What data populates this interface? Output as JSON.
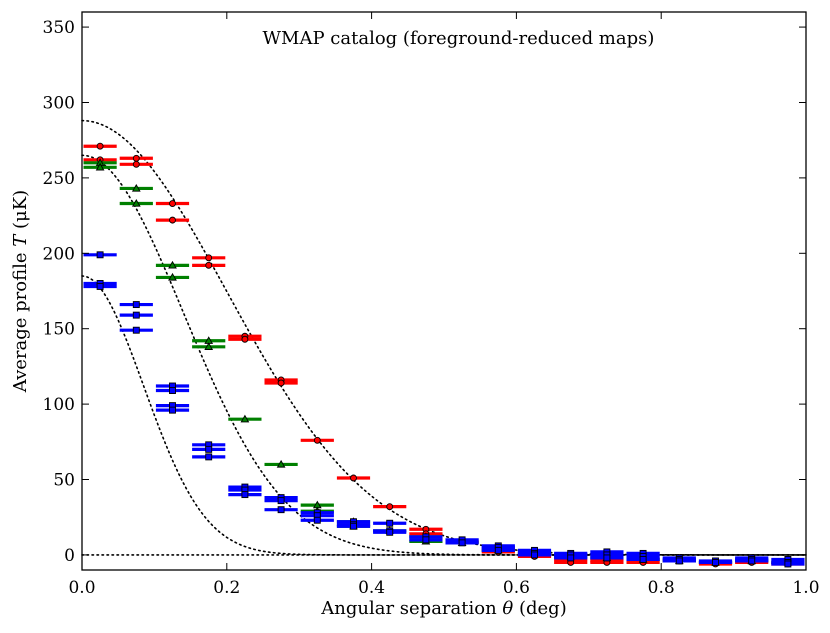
{
  "chart_data": {
    "type": "scatter",
    "title": "WMAP catalog (foreground-reduced maps)",
    "xlabel_prefix": "Angular separation ",
    "xlabel_symbol": "θ",
    "xlabel_suffix": " (deg)",
    "ylabel_prefix": "Average profile ",
    "ylabel_symbol": "T",
    "ylabel_suffix": " (μK)",
    "xlim": [
      0.0,
      1.0
    ],
    "ylim": [
      -10,
      360
    ],
    "xticks": [
      0.0,
      0.2,
      0.4,
      0.6,
      0.8,
      1.0
    ],
    "xtick_labels": [
      "0.0",
      "0.2",
      "0.4",
      "0.6",
      "0.8",
      "1.0"
    ],
    "yticks": [
      0,
      50,
      100,
      150,
      200,
      250,
      300,
      350
    ],
    "ytick_labels": [
      "0",
      "50",
      "100",
      "150",
      "200",
      "250",
      "300",
      "350"
    ],
    "bin_half_width": 0.025,
    "grid": false,
    "colors": {
      "red": "#ff0000",
      "green": "#008000",
      "blue": "#0000ff",
      "model": "#000000"
    },
    "series": [
      {
        "color": "red",
        "marker": "circle",
        "points": [
          [
            0.025,
            271
          ],
          [
            0.025,
            262
          ],
          [
            0.075,
            263
          ],
          [
            0.075,
            259
          ],
          [
            0.125,
            233
          ],
          [
            0.125,
            222
          ],
          [
            0.175,
            197
          ],
          [
            0.175,
            192
          ],
          [
            0.225,
            145
          ],
          [
            0.225,
            143
          ],
          [
            0.275,
            116
          ],
          [
            0.275,
            114
          ],
          [
            0.325,
            76
          ],
          [
            0.375,
            51
          ],
          [
            0.425,
            32
          ],
          [
            0.475,
            17
          ],
          [
            0.475,
            14
          ],
          [
            0.525,
            9
          ],
          [
            0.575,
            4
          ],
          [
            0.575,
            2
          ],
          [
            0.625,
            1
          ],
          [
            0.625,
            -1
          ],
          [
            0.675,
            -3
          ],
          [
            0.675,
            -5
          ],
          [
            0.725,
            -4
          ],
          [
            0.725,
            -5
          ],
          [
            0.775,
            -3
          ],
          [
            0.775,
            -5
          ],
          [
            0.825,
            -4
          ],
          [
            0.875,
            -6
          ],
          [
            0.925,
            -4
          ],
          [
            0.925,
            -5
          ],
          [
            0.975,
            -5
          ],
          [
            0.975,
            -6
          ]
        ]
      },
      {
        "color": "green",
        "marker": "triangle",
        "points": [
          [
            0.025,
            260
          ],
          [
            0.025,
            257
          ],
          [
            0.075,
            243
          ],
          [
            0.075,
            233
          ],
          [
            0.125,
            192
          ],
          [
            0.125,
            184
          ],
          [
            0.175,
            142
          ],
          [
            0.175,
            138
          ],
          [
            0.225,
            90
          ],
          [
            0.275,
            60
          ],
          [
            0.325,
            33
          ],
          [
            0.325,
            29
          ],
          [
            0.375,
            22
          ],
          [
            0.375,
            19
          ],
          [
            0.425,
            16
          ],
          [
            0.475,
            12
          ],
          [
            0.475,
            9
          ],
          [
            0.525,
            8
          ],
          [
            0.575,
            3
          ],
          [
            0.625,
            1
          ],
          [
            0.675,
            -1
          ],
          [
            0.725,
            -2
          ],
          [
            0.775,
            -3
          ],
          [
            0.825,
            -4
          ],
          [
            0.875,
            -5
          ],
          [
            0.925,
            -4
          ],
          [
            0.975,
            -5
          ]
        ]
      },
      {
        "color": "blue",
        "marker": "square",
        "points": [
          [
            0.025,
            199
          ],
          [
            0.025,
            180
          ],
          [
            0.025,
            178
          ],
          [
            0.075,
            166
          ],
          [
            0.075,
            159
          ],
          [
            0.075,
            149
          ],
          [
            0.125,
            112
          ],
          [
            0.125,
            109
          ],
          [
            0.125,
            99
          ],
          [
            0.125,
            96
          ],
          [
            0.175,
            73
          ],
          [
            0.175,
            70
          ],
          [
            0.175,
            65
          ],
          [
            0.225,
            45
          ],
          [
            0.225,
            43
          ],
          [
            0.225,
            40
          ],
          [
            0.275,
            38
          ],
          [
            0.275,
            36
          ],
          [
            0.275,
            30
          ],
          [
            0.325,
            28
          ],
          [
            0.325,
            26
          ],
          [
            0.325,
            23
          ],
          [
            0.375,
            22
          ],
          [
            0.375,
            20
          ],
          [
            0.375,
            19
          ],
          [
            0.425,
            21
          ],
          [
            0.425,
            16
          ],
          [
            0.425,
            15
          ],
          [
            0.475,
            12
          ],
          [
            0.475,
            10
          ],
          [
            0.525,
            10
          ],
          [
            0.525,
            8
          ],
          [
            0.575,
            6
          ],
          [
            0.575,
            5
          ],
          [
            0.575,
            3
          ],
          [
            0.625,
            3
          ],
          [
            0.625,
            1
          ],
          [
            0.625,
            0
          ],
          [
            0.675,
            1
          ],
          [
            0.675,
            0
          ],
          [
            0.675,
            -2
          ],
          [
            0.725,
            2
          ],
          [
            0.725,
            0
          ],
          [
            0.725,
            -2
          ],
          [
            0.775,
            1
          ],
          [
            0.775,
            -1
          ],
          [
            0.775,
            -3
          ],
          [
            0.825,
            -2
          ],
          [
            0.825,
            -3
          ],
          [
            0.825,
            -4
          ],
          [
            0.875,
            -4
          ],
          [
            0.875,
            -5
          ],
          [
            0.925,
            -2
          ],
          [
            0.925,
            -3
          ],
          [
            0.925,
            -4
          ],
          [
            0.975,
            -3
          ],
          [
            0.975,
            -5
          ],
          [
            0.975,
            -6
          ]
        ]
      }
    ],
    "model_curves": [
      {
        "kind": "gaussian",
        "amplitude": 288,
        "sigma": 0.2
      },
      {
        "kind": "gaussian",
        "amplitude": 265,
        "sigma": 0.14
      },
      {
        "kind": "gaussian",
        "amplitude": 185,
        "sigma": 0.085
      },
      {
        "kind": "zero_line",
        "amplitude": 0,
        "sigma": 1
      }
    ]
  }
}
